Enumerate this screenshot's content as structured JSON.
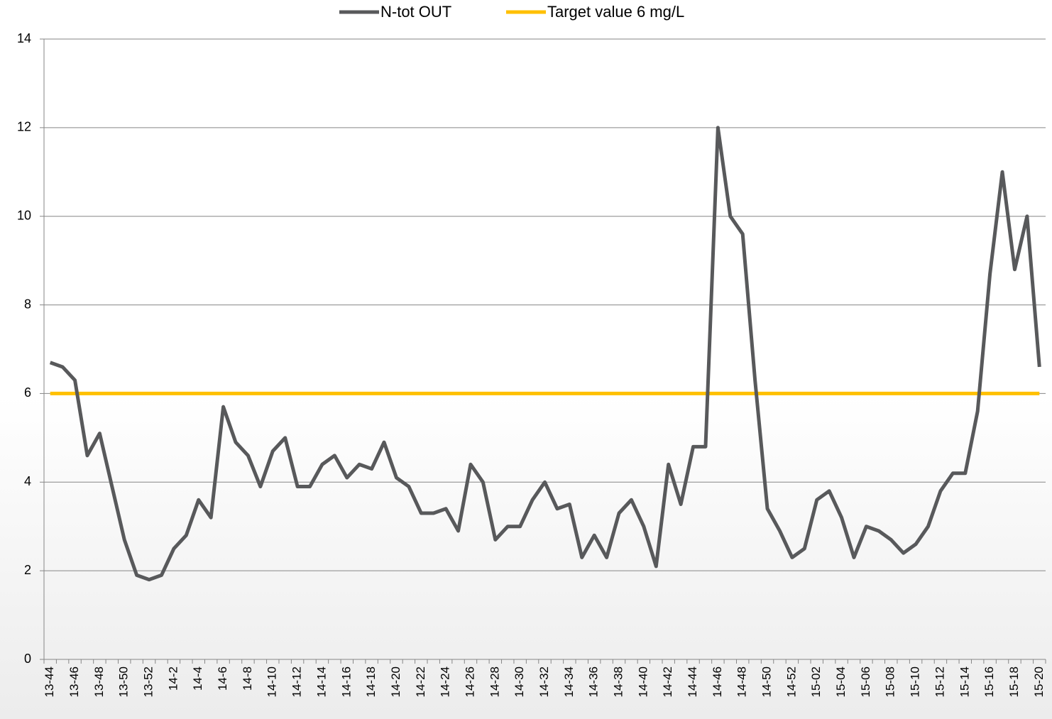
{
  "chart_data": {
    "type": "line",
    "categories": [
      "13-44",
      null,
      "13-46",
      null,
      "13-48",
      null,
      "13-50",
      null,
      "13-52",
      null,
      "14-2",
      null,
      "14-4",
      null,
      "14-6",
      null,
      "14-8",
      null,
      "14-10",
      null,
      "14-12",
      null,
      "14-14",
      null,
      "14-16",
      null,
      "14-18",
      null,
      "14-20",
      null,
      "14-22",
      null,
      "14-24",
      null,
      "14-26",
      null,
      "14-28",
      null,
      "14-30",
      null,
      "14-32",
      null,
      "14-34",
      null,
      "14-36",
      null,
      "14-38",
      null,
      "14-40",
      null,
      "14-42",
      null,
      "14-44",
      null,
      "14-46",
      null,
      "14-48",
      null,
      "14-50",
      null,
      "14-52",
      null,
      "15-02",
      null,
      "15-04",
      null,
      "15-06",
      null,
      "15-08",
      null,
      "15-10",
      null,
      "15-12",
      null,
      "15-14",
      null,
      "15-16",
      null,
      "15-18",
      null,
      "15-20"
    ],
    "series": [
      {
        "name": "N-tot OUT",
        "color": "#58595b",
        "values": [
          6.7,
          6.6,
          6.3,
          4.6,
          5.1,
          3.9,
          2.7,
          1.9,
          1.8,
          1.9,
          2.5,
          2.8,
          3.6,
          3.2,
          5.7,
          4.9,
          4.6,
          3.9,
          4.7,
          5.0,
          3.9,
          3.9,
          4.4,
          4.6,
          4.1,
          4.4,
          4.3,
          4.9,
          4.1,
          3.9,
          3.3,
          3.3,
          3.4,
          2.9,
          4.4,
          4.0,
          2.7,
          3.0,
          3.0,
          3.6,
          4.0,
          3.4,
          3.5,
          2.3,
          2.8,
          2.3,
          3.3,
          3.6,
          3.0,
          2.1,
          4.4,
          3.5,
          4.8,
          4.8,
          12.0,
          10.0,
          9.6,
          6.3,
          3.4,
          2.9,
          2.3,
          2.5,
          3.6,
          3.8,
          3.2,
          2.3,
          3.0,
          2.9,
          2.7,
          2.4,
          2.6,
          3.0,
          3.8,
          4.2,
          4.2,
          5.6,
          8.7,
          11.0,
          8.8,
          10.0,
          6.6
        ]
      },
      {
        "name": "Target value 6 mg/L",
        "color": "#ffc000",
        "values": [
          6,
          6,
          6,
          6,
          6,
          6,
          6,
          6,
          6,
          6,
          6,
          6,
          6,
          6,
          6,
          6,
          6,
          6,
          6,
          6,
          6,
          6,
          6,
          6,
          6,
          6,
          6,
          6,
          6,
          6,
          6,
          6,
          6,
          6,
          6,
          6,
          6,
          6,
          6,
          6,
          6,
          6,
          6,
          6,
          6,
          6,
          6,
          6,
          6,
          6,
          6,
          6,
          6,
          6,
          6,
          6,
          6,
          6,
          6,
          6,
          6,
          6,
          6,
          6,
          6,
          6,
          6,
          6,
          6,
          6,
          6,
          6,
          6,
          6,
          6,
          6,
          6,
          6,
          6,
          6,
          6
        ]
      }
    ],
    "ylim": [
      0,
      14
    ],
    "yticks": [
      0,
      2,
      4,
      6,
      8,
      10,
      12,
      14
    ],
    "grid": true,
    "legend": "top"
  }
}
